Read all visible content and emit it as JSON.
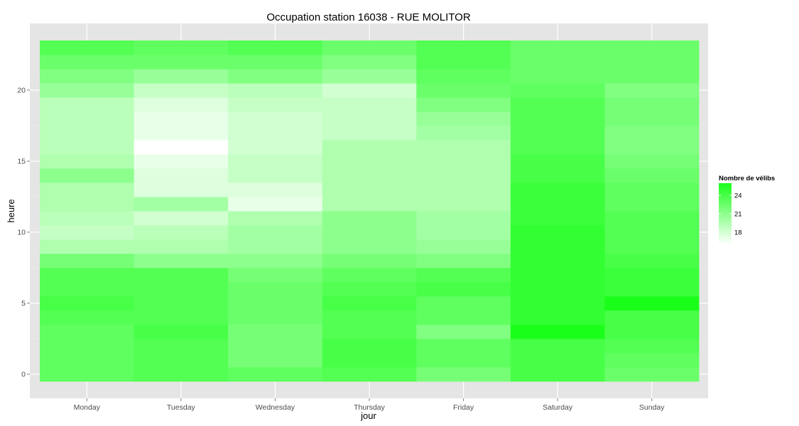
{
  "chart_data": {
    "type": "heatmap",
    "title": "Occupation station 16038 - RUE MOLITOR",
    "xlabel": "jour",
    "ylabel": "heure",
    "categories": [
      "Monday",
      "Tuesday",
      "Wednesday",
      "Thursday",
      "Friday",
      "Saturday",
      "Sunday"
    ],
    "y_values": [
      0,
      1,
      2,
      3,
      4,
      5,
      6,
      7,
      8,
      9,
      10,
      11,
      12,
      13,
      14,
      15,
      16,
      17,
      18,
      19,
      20,
      21,
      22,
      23
    ],
    "y_ticks": [
      0,
      5,
      10,
      15,
      20
    ],
    "ylim": [
      -0.5,
      23.5
    ],
    "grid": true,
    "values": [
      [
        23.0,
        23.5,
        23.0,
        23.5,
        22.0,
        24.0,
        22.5
      ],
      [
        23.0,
        23.5,
        22.0,
        24.0,
        23.0,
        24.0,
        23.0
      ],
      [
        23.0,
        23.5,
        22.0,
        24.0,
        23.0,
        24.0,
        23.5
      ],
      [
        23.0,
        24.0,
        22.0,
        23.5,
        21.5,
        26.0,
        24.0
      ],
      [
        23.5,
        23.5,
        22.5,
        23.5,
        23.0,
        25.0,
        24.0
      ],
      [
        24.0,
        23.5,
        22.5,
        24.0,
        23.0,
        25.0,
        26.0
      ],
      [
        23.5,
        23.5,
        22.5,
        23.5,
        24.0,
        25.0,
        24.5
      ],
      [
        23.5,
        23.5,
        22.0,
        23.0,
        23.5,
        25.0,
        24.5
      ],
      [
        22.0,
        21.0,
        21.0,
        22.0,
        21.5,
        25.0,
        24.0
      ],
      [
        19.5,
        19.5,
        20.0,
        21.0,
        20.5,
        25.0,
        23.5
      ],
      [
        18.5,
        19.0,
        20.0,
        21.0,
        20.0,
        25.0,
        23.5
      ],
      [
        19.0,
        18.0,
        19.5,
        21.0,
        20.0,
        24.5,
        23.5
      ],
      [
        19.5,
        20.0,
        17.0,
        19.5,
        19.5,
        24.5,
        23.0
      ],
      [
        19.5,
        17.5,
        17.5,
        19.5,
        19.5,
        24.5,
        23.0
      ],
      [
        21.0,
        17.5,
        18.5,
        19.5,
        19.5,
        24.0,
        22.5
      ],
      [
        19.5,
        17.0,
        18.5,
        19.5,
        19.5,
        24.0,
        22.0
      ],
      [
        19.0,
        16.0,
        18.0,
        19.5,
        19.5,
        23.5,
        21.5
      ],
      [
        19.0,
        17.0,
        18.0,
        18.5,
        20.0,
        23.5,
        21.5
      ],
      [
        19.0,
        17.0,
        18.0,
        18.5,
        20.5,
        23.5,
        22.0
      ],
      [
        19.0,
        17.5,
        18.5,
        18.5,
        21.5,
        23.5,
        22.0
      ],
      [
        20.5,
        18.5,
        19.0,
        18.0,
        22.5,
        23.0,
        21.5
      ],
      [
        21.5,
        20.5,
        21.5,
        20.5,
        23.0,
        22.5,
        22.5
      ],
      [
        22.5,
        22.5,
        22.5,
        21.5,
        23.5,
        22.5,
        22.5
      ],
      [
        23.5,
        23.0,
        23.5,
        22.5,
        23.5,
        22.5,
        22.5
      ]
    ],
    "color_scale": {
      "low": "#ffffff",
      "high": "#1aff1a",
      "min": 16,
      "max": 26
    },
    "legend": {
      "title": "Nombre de vélibs",
      "ticks": [
        18,
        21,
        24
      ],
      "position": "right"
    }
  }
}
